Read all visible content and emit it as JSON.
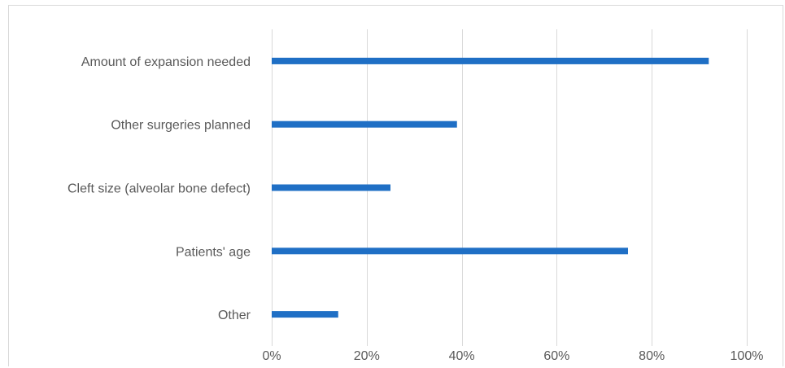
{
  "chart_data": {
    "type": "bar",
    "orientation": "horizontal",
    "categories": [
      "Amount of expansion needed",
      "Other surgeries planned",
      "Cleft size (alveolar bone defect)",
      "Patients' age",
      "Other"
    ],
    "values": [
      0.92,
      0.39,
      0.25,
      0.75,
      0.14
    ],
    "xlim": [
      0,
      1
    ],
    "x_ticks": [
      0,
      0.2,
      0.4,
      0.6,
      0.8,
      1.0
    ],
    "x_tick_labels": [
      "0%",
      "20%",
      "40%",
      "60%",
      "80%",
      "100%"
    ],
    "title": "",
    "xlabel": "",
    "ylabel": "",
    "grid": "vertical",
    "legend": "none",
    "bar_color": "#1f6fc5",
    "grid_color": "#d9d9d9",
    "text_color": "#595959"
  }
}
